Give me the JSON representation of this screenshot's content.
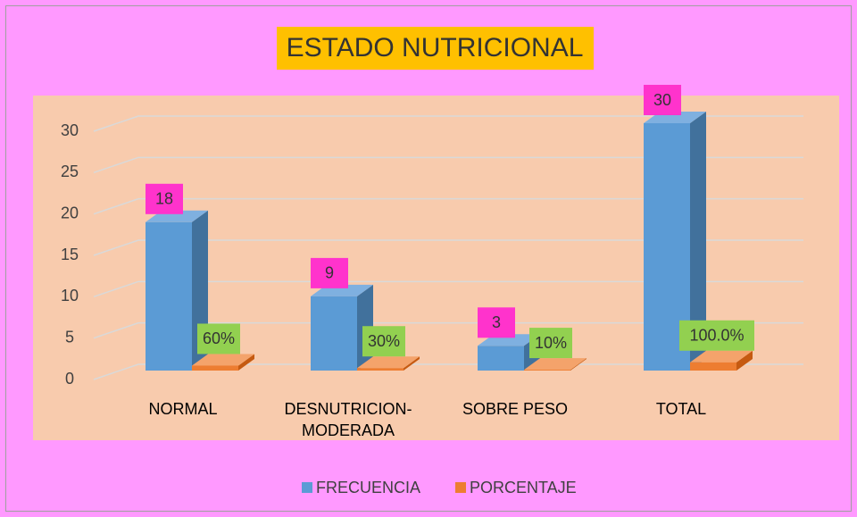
{
  "chart_data": {
    "type": "bar",
    "title": "ESTADO NUTRICIONAL",
    "categories": [
      "NORMAL",
      "DESNUTRICION-MODERADA",
      "SOBRE PESO",
      "TOTAL"
    ],
    "series": [
      {
        "name": "FRECUENCIA",
        "color": "#5b9bd5",
        "values": [
          18,
          9,
          3,
          30
        ]
      },
      {
        "name": "PORCENTAJE",
        "color": "#ed7d31",
        "values": [
          0.6,
          0.3,
          0.1,
          1.0
        ],
        "value_labels": [
          "60%",
          "30%",
          "10%",
          "100.0%"
        ]
      }
    ],
    "ylim": [
      0,
      30
    ],
    "yticks": [
      0,
      5,
      10,
      15,
      20,
      25,
      30
    ],
    "grid": true,
    "legend": "bottom"
  }
}
